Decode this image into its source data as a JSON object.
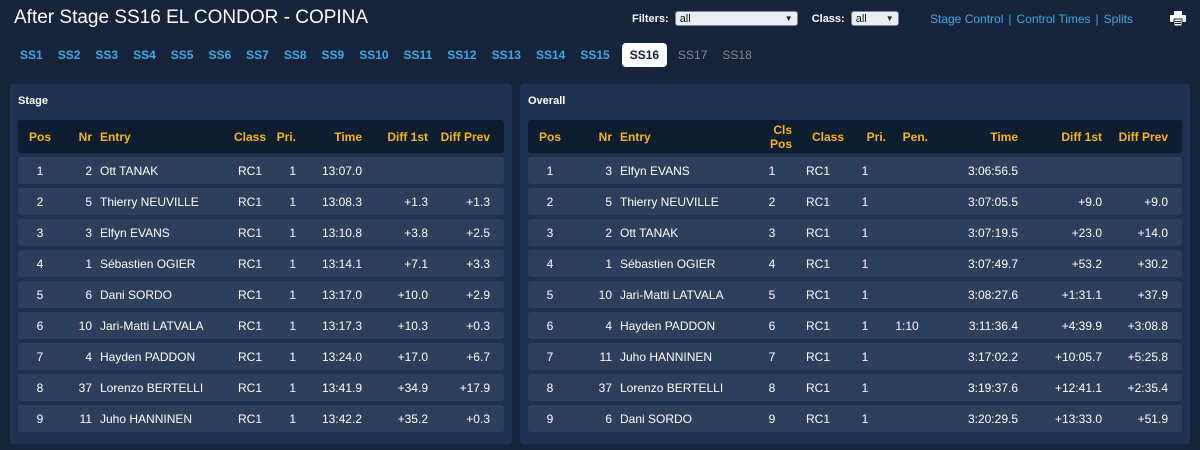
{
  "header": {
    "title": "After Stage SS16 EL CONDOR - COPINA",
    "filters_label": "Filters:",
    "filters_value": "all",
    "class_label": "Class:",
    "class_value": "all",
    "links": [
      "Stage Control",
      "Control Times",
      "Splits"
    ]
  },
  "tabs": [
    {
      "label": "SS1",
      "state": "link"
    },
    {
      "label": "SS2",
      "state": "link"
    },
    {
      "label": "SS3",
      "state": "link"
    },
    {
      "label": "SS4",
      "state": "link"
    },
    {
      "label": "SS5",
      "state": "link"
    },
    {
      "label": "SS6",
      "state": "link"
    },
    {
      "label": "SS7",
      "state": "link"
    },
    {
      "label": "SS8",
      "state": "link"
    },
    {
      "label": "SS9",
      "state": "link"
    },
    {
      "label": "SS10",
      "state": "link"
    },
    {
      "label": "SS11",
      "state": "link"
    },
    {
      "label": "SS12",
      "state": "link"
    },
    {
      "label": "SS13",
      "state": "link"
    },
    {
      "label": "SS14",
      "state": "link"
    },
    {
      "label": "SS15",
      "state": "link"
    },
    {
      "label": "SS16",
      "state": "active"
    },
    {
      "label": "SS17",
      "state": "disabled"
    },
    {
      "label": "SS18",
      "state": "disabled"
    }
  ],
  "stage": {
    "title": "Stage",
    "columns": [
      "Pos",
      "Nr",
      "Entry",
      "Class",
      "Pri.",
      "Time",
      "Diff 1st",
      "Diff Prev"
    ],
    "rows": [
      [
        "1",
        "2",
        "Ott TANAK",
        "RC1",
        "1",
        "13:07.0",
        "",
        ""
      ],
      [
        "2",
        "5",
        "Thierry NEUVILLE",
        "RC1",
        "1",
        "13:08.3",
        "+1.3",
        "+1.3"
      ],
      [
        "3",
        "3",
        "Elfyn EVANS",
        "RC1",
        "1",
        "13:10.8",
        "+3.8",
        "+2.5"
      ],
      [
        "4",
        "1",
        "Sébastien OGIER",
        "RC1",
        "1",
        "13:14.1",
        "+7.1",
        "+3.3"
      ],
      [
        "5",
        "6",
        "Dani SORDO",
        "RC1",
        "1",
        "13:17.0",
        "+10.0",
        "+2.9"
      ],
      [
        "6",
        "10",
        "Jari-Matti LATVALA",
        "RC1",
        "1",
        "13:17.3",
        "+10.3",
        "+0.3"
      ],
      [
        "7",
        "4",
        "Hayden PADDON",
        "RC1",
        "1",
        "13:24.0",
        "+17.0",
        "+6.7"
      ],
      [
        "8",
        "37",
        "Lorenzo BERTELLI",
        "RC1",
        "1",
        "13:41.9",
        "+34.9",
        "+17.9"
      ],
      [
        "9",
        "11",
        "Juho HANNINEN",
        "RC1",
        "1",
        "13:42.2",
        "+35.2",
        "+0.3"
      ]
    ]
  },
  "overall": {
    "title": "Overall",
    "columns": [
      "Pos",
      "Nr",
      "Entry",
      "Cls Pos",
      "Class",
      "Pri.",
      "Pen.",
      "Time",
      "Diff 1st",
      "Diff Prev"
    ],
    "rows": [
      [
        "1",
        "3",
        "Elfyn EVANS",
        "1",
        "RC1",
        "1",
        "",
        "3:06:56.5",
        "",
        ""
      ],
      [
        "2",
        "5",
        "Thierry NEUVILLE",
        "2",
        "RC1",
        "1",
        "",
        "3:07:05.5",
        "+9.0",
        "+9.0"
      ],
      [
        "3",
        "2",
        "Ott TANAK",
        "3",
        "RC1",
        "1",
        "",
        "3:07:19.5",
        "+23.0",
        "+14.0"
      ],
      [
        "4",
        "1",
        "Sébastien OGIER",
        "4",
        "RC1",
        "1",
        "",
        "3:07:49.7",
        "+53.2",
        "+30.2"
      ],
      [
        "5",
        "10",
        "Jari-Matti LATVALA",
        "5",
        "RC1",
        "1",
        "",
        "3:08:27.6",
        "+1:31.1",
        "+37.9"
      ],
      [
        "6",
        "4",
        "Hayden PADDON",
        "6",
        "RC1",
        "1",
        "1:10",
        "3:11:36.4",
        "+4:39.9",
        "+3:08.8"
      ],
      [
        "7",
        "11",
        "Juho HANNINEN",
        "7",
        "RC1",
        "1",
        "",
        "3:17:02.2",
        "+10:05.7",
        "+5:25.8"
      ],
      [
        "8",
        "37",
        "Lorenzo BERTELLI",
        "8",
        "RC1",
        "1",
        "",
        "3:19:37.6",
        "+12:41.1",
        "+2:35.4"
      ],
      [
        "9",
        "6",
        "Dani SORDO",
        "9",
        "RC1",
        "1",
        "",
        "3:20:29.5",
        "+13:33.0",
        "+51.9"
      ]
    ]
  }
}
